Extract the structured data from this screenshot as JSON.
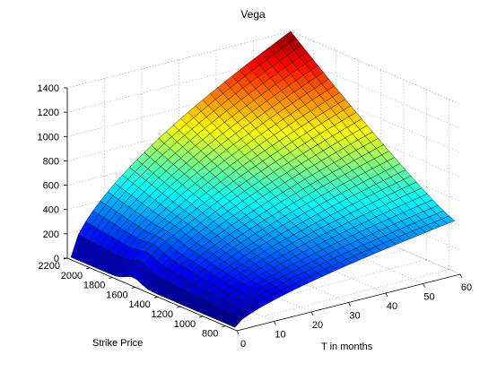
{
  "chart_data": {
    "type": "surface",
    "title": "Vega",
    "xlabel": "T in months",
    "ylabel": "Strike Price",
    "zlabel": "",
    "xlim": [
      0,
      60
    ],
    "ylim": [
      700,
      2200
    ],
    "zlim": [
      0,
      1400
    ],
    "x_ticks": [
      "0",
      "10",
      "20",
      "30",
      "40",
      "50",
      "60"
    ],
    "y_ticks": [
      "800",
      "1000",
      "1200",
      "1400",
      "1600",
      "1800",
      "2000",
      "2200"
    ],
    "z_ticks": [
      "0",
      "200",
      "400",
      "600",
      "800",
      "1000",
      "1200",
      "1400"
    ],
    "grid": true,
    "colormap": "jet",
    "surface_extent": {
      "T_min": 1,
      "T_max": 60,
      "K_min": 750,
      "K_max": 2200
    },
    "vega_samples": [
      {
        "T": 60,
        "K": 2200,
        "vega": 1400
      },
      {
        "T": 60,
        "K": 750,
        "vega": 420
      },
      {
        "T": 1,
        "K": 2200,
        "vega": 0
      },
      {
        "T": 1,
        "K": 750,
        "vega": 0
      }
    ]
  }
}
